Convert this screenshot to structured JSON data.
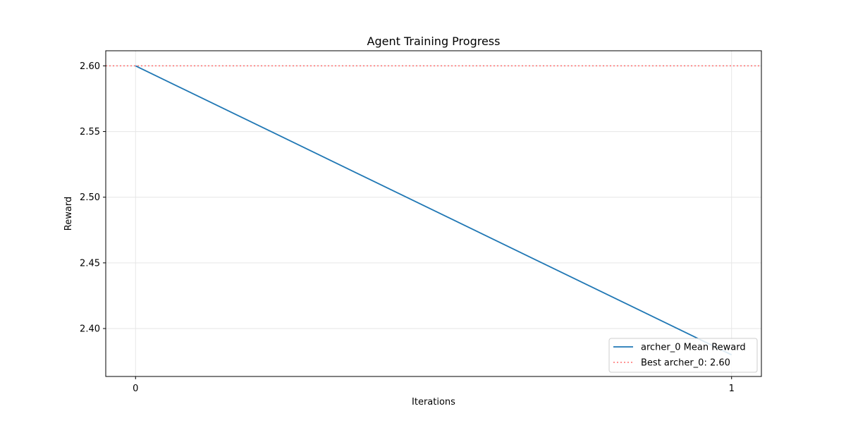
{
  "chart_data": {
    "type": "line",
    "title": "Agent Training Progress",
    "xlabel": "Iterations",
    "ylabel": "Reward",
    "x": [
      0,
      1
    ],
    "xticks": [
      0,
      1
    ],
    "yticks": [
      2.4,
      2.45,
      2.5,
      2.55,
      2.6
    ],
    "xlim": [
      -0.05,
      1.05
    ],
    "ylim": [
      2.3635,
      2.6115
    ],
    "grid": true,
    "legend_position": "bottom-right",
    "series": [
      {
        "name": "archer_0 Mean Reward",
        "values": [
          2.6,
          2.38
        ],
        "color": "#1f77b4",
        "style": "solid"
      }
    ],
    "reference_lines": [
      {
        "name": "Best archer_0: 2.60",
        "y": 2.6,
        "color": "#ff7070",
        "style": "dotted"
      }
    ]
  }
}
